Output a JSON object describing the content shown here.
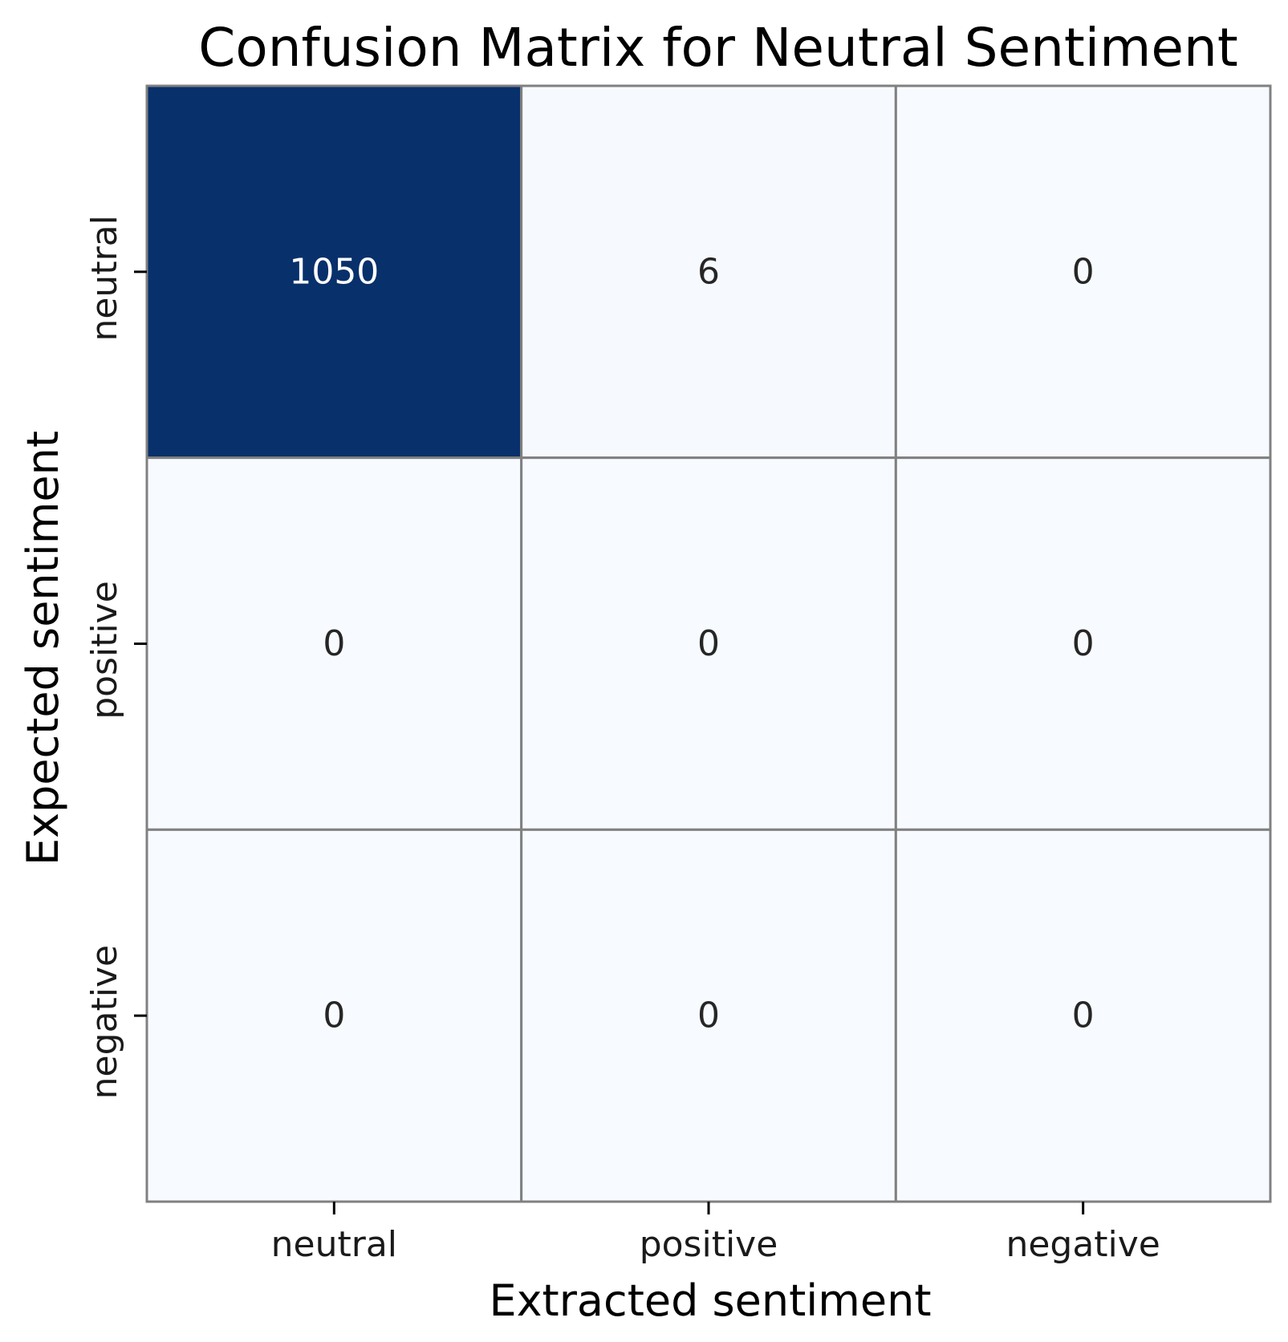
{
  "chart_data": {
    "type": "heatmap",
    "title": "Confusion Matrix for Neutral Sentiment",
    "xlabel": "Extracted sentiment",
    "ylabel": "Expected sentiment",
    "x_categories": [
      "neutral",
      "positive",
      "negative"
    ],
    "y_categories": [
      "neutral",
      "positive",
      "negative"
    ],
    "values": [
      [
        1050,
        6,
        0
      ],
      [
        0,
        0,
        0
      ],
      [
        0,
        0,
        0
      ]
    ],
    "colormap": "Blues",
    "color_low": "#f7fbff",
    "color_high": "#08306b",
    "cell_border_color": "#808080",
    "text_dark_color": "#262626",
    "text_light_color": "#ffffff",
    "colorbar": false,
    "grid": false
  }
}
